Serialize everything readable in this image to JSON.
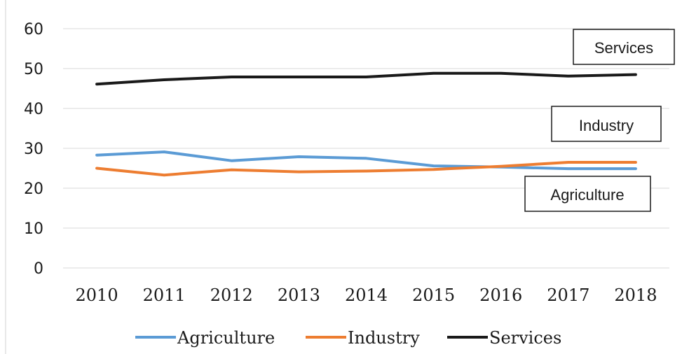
{
  "chart_data": {
    "type": "line",
    "title": "",
    "xlabel": "",
    "ylabel": "",
    "categories": [
      "2010",
      "2011",
      "2012",
      "2013",
      "2014",
      "2015",
      "2016",
      "2017",
      "2018"
    ],
    "ylim": [
      0,
      60
    ],
    "yticks": [
      "0",
      "10",
      "20",
      "30",
      "40",
      "50",
      "60"
    ],
    "grid": true,
    "legend_position": "bottom",
    "series": [
      {
        "name": "Agriculture",
        "color": "#5b9bd5",
        "values": [
          28.3,
          29.1,
          26.9,
          27.9,
          27.5,
          25.6,
          25.3,
          24.9,
          24.9
        ]
      },
      {
        "name": "Industry",
        "color": "#ed7d31",
        "values": [
          25.0,
          23.3,
          24.6,
          24.1,
          24.3,
          24.7,
          25.5,
          26.5,
          26.5
        ]
      },
      {
        "name": "Services",
        "color": "#1a1a1a",
        "values": [
          46.1,
          47.2,
          47.9,
          47.9,
          47.9,
          48.8,
          48.8,
          48.1,
          48.5
        ]
      }
    ],
    "callouts": [
      "Services",
      "Industry",
      "Agriculture"
    ]
  }
}
